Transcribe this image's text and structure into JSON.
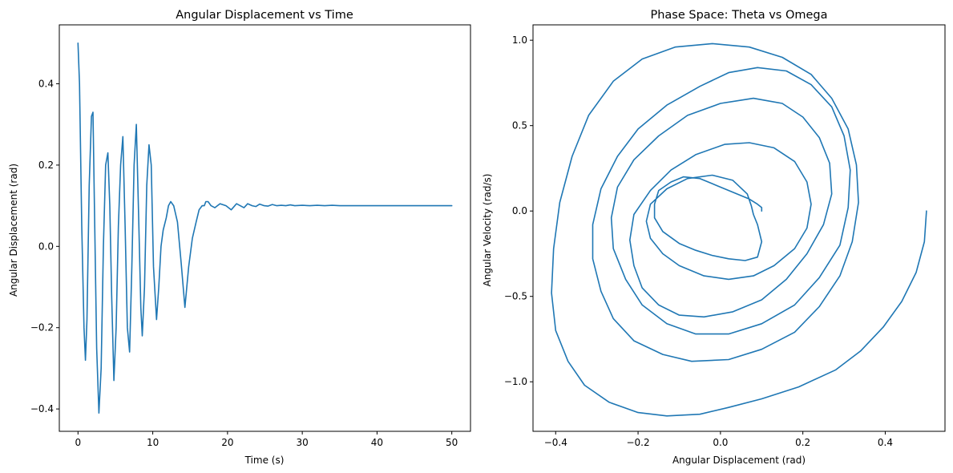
{
  "chart_data": [
    {
      "type": "line",
      "title": "Angular Displacement vs Time",
      "xlabel": "Time (s)",
      "ylabel": "Angular Displacement (rad)",
      "xlim": [
        -2.5,
        52.5
      ],
      "ylim": [
        -0.455,
        0.545
      ],
      "xticks": [
        0,
        10,
        20,
        30,
        40,
        50
      ],
      "yticks": [
        -0.4,
        -0.2,
        0.0,
        0.2,
        0.4
      ],
      "xticklabels": [
        "0",
        "10",
        "20",
        "30",
        "40",
        "50"
      ],
      "yticklabels": [
        "−0.4",
        "−0.2",
        "0.0",
        "0.2",
        "0.4"
      ],
      "grid": false,
      "series": [
        {
          "color": "#1f77b4",
          "x": [
            0,
            0.2,
            0.5,
            0.8,
            1.0,
            1.2,
            1.5,
            1.8,
            2.0,
            2.2,
            2.5,
            2.8,
            3.1,
            3.4,
            3.7,
            4.0,
            4.25,
            4.5,
            4.8,
            5.1,
            5.4,
            5.7,
            6.0,
            6.3,
            6.6,
            6.9,
            7.2,
            7.5,
            7.8,
            8.1,
            8.4,
            8.6,
            8.9,
            9.2,
            9.5,
            9.8,
            10.1,
            10.5,
            10.8,
            11.1,
            11.4,
            11.8,
            12.1,
            12.4,
            12.8,
            13.3,
            13.8,
            14.3,
            14.8,
            15.3,
            15.8,
            16.2,
            16.6,
            16.9,
            17.1,
            17.4,
            17.8,
            18.3,
            19.0,
            19.8,
            20.5,
            21.2,
            21.7,
            22.2,
            22.7,
            23.3,
            23.8,
            24.3,
            24.9,
            25.4,
            26.0,
            26.6,
            27.2,
            27.8,
            28.4,
            29.0,
            30.0,
            31.0,
            32.0,
            33.0,
            34.0,
            35.0,
            37.0,
            40.0,
            45.0,
            50.0
          ],
          "y": [
            0.5,
            0.4,
            0.05,
            -0.2,
            -0.28,
            -0.18,
            0.15,
            0.32,
            0.33,
            0.1,
            -0.25,
            -0.41,
            -0.3,
            0.0,
            0.2,
            0.23,
            0.1,
            -0.12,
            -0.33,
            -0.2,
            0.05,
            0.2,
            0.27,
            0.05,
            -0.2,
            -0.26,
            -0.05,
            0.2,
            0.3,
            0.08,
            -0.15,
            -0.22,
            -0.1,
            0.15,
            0.25,
            0.2,
            -0.05,
            -0.18,
            -0.1,
            0.0,
            0.04,
            0.07,
            0.1,
            0.11,
            0.1,
            0.06,
            -0.04,
            -0.15,
            -0.05,
            0.02,
            0.06,
            0.09,
            0.1,
            0.1,
            0.11,
            0.11,
            0.1,
            0.095,
            0.105,
            0.1,
            0.09,
            0.105,
            0.1,
            0.095,
            0.105,
            0.1,
            0.098,
            0.104,
            0.1,
            0.099,
            0.103,
            0.1,
            0.101,
            0.1,
            0.102,
            0.1,
            0.101,
            0.1,
            0.101,
            0.1,
            0.101,
            0.1,
            0.1,
            0.1,
            0.1,
            0.1
          ]
        }
      ]
    },
    {
      "type": "line",
      "title": "Phase Space: Theta vs Omega",
      "xlabel": "Angular Displacement (rad)",
      "ylabel": "Angular Velocity (rad/s)",
      "xlim": [
        -0.455,
        0.545
      ],
      "ylim": [
        -1.29,
        1.09
      ],
      "xticks": [
        -0.4,
        -0.2,
        0.0,
        0.2,
        0.4
      ],
      "yticks": [
        -1.0,
        -0.5,
        0.0,
        0.5,
        1.0
      ],
      "xticklabels": [
        "−0.4",
        "−0.2",
        "0.0",
        "0.2",
        "0.4"
      ],
      "yticklabels": [
        "−1.0",
        "−0.5",
        "0.0",
        "0.5",
        "1.0"
      ],
      "grid": false,
      "series": [
        {
          "color": "#1f77b4",
          "x": [
            0.5,
            0.495,
            0.475,
            0.44,
            0.395,
            0.34,
            0.28,
            0.19,
            0.1,
            0.02,
            -0.05,
            -0.13,
            -0.2,
            -0.27,
            -0.33,
            -0.37,
            -0.4,
            -0.41,
            -0.405,
            -0.39,
            -0.36,
            -0.32,
            -0.26,
            -0.19,
            -0.11,
            -0.02,
            0.07,
            0.15,
            0.22,
            0.27,
            0.31,
            0.33,
            0.335,
            0.32,
            0.29,
            0.24,
            0.18,
            0.1,
            0.02,
            -0.07,
            -0.14,
            -0.21,
            -0.26,
            -0.29,
            -0.31,
            -0.31,
            -0.29,
            -0.25,
            -0.2,
            -0.13,
            -0.05,
            0.02,
            0.09,
            0.16,
            0.22,
            0.27,
            0.3,
            0.315,
            0.31,
            0.29,
            0.24,
            0.18,
            0.1,
            0.02,
            -0.06,
            -0.13,
            -0.19,
            -0.23,
            -0.26,
            -0.265,
            -0.25,
            -0.21,
            -0.15,
            -0.08,
            0.0,
            0.08,
            0.15,
            0.2,
            0.24,
            0.265,
            0.27,
            0.25,
            0.21,
            0.16,
            0.1,
            0.03,
            -0.04,
            -0.1,
            -0.15,
            -0.19,
            -0.21,
            -0.22,
            -0.21,
            -0.17,
            -0.12,
            -0.06,
            0.01,
            0.07,
            0.13,
            0.18,
            0.21,
            0.22,
            0.21,
            0.18,
            0.13,
            0.08,
            0.02,
            -0.04,
            -0.1,
            -0.14,
            -0.17,
            -0.18,
            -0.17,
            -0.13,
            -0.08,
            -0.02,
            0.03,
            0.065,
            0.075,
            0.08,
            0.09,
            0.1,
            0.09,
            0.06,
            0.02,
            -0.02,
            -0.06,
            -0.1,
            -0.14,
            -0.16,
            -0.16,
            -0.15,
            -0.12,
            -0.09,
            -0.05,
            -0.01,
            0.03,
            0.07,
            0.09,
            0.1,
            0.1,
            0.1
          ],
          "y": [
            0.0,
            -0.18,
            -0.36,
            -0.53,
            -0.68,
            -0.82,
            -0.93,
            -1.03,
            -1.1,
            -1.15,
            -1.19,
            -1.2,
            -1.18,
            -1.12,
            -1.02,
            -0.88,
            -0.7,
            -0.48,
            -0.22,
            0.05,
            0.32,
            0.56,
            0.76,
            0.89,
            0.96,
            0.98,
            0.96,
            0.9,
            0.8,
            0.66,
            0.48,
            0.27,
            0.05,
            -0.18,
            -0.38,
            -0.56,
            -0.71,
            -0.81,
            -0.87,
            -0.88,
            -0.84,
            -0.76,
            -0.63,
            -0.47,
            -0.28,
            -0.08,
            0.13,
            0.32,
            0.48,
            0.62,
            0.73,
            0.81,
            0.84,
            0.82,
            0.74,
            0.61,
            0.44,
            0.24,
            0.02,
            -0.2,
            -0.39,
            -0.55,
            -0.66,
            -0.72,
            -0.72,
            -0.66,
            -0.55,
            -0.4,
            -0.22,
            -0.04,
            0.14,
            0.3,
            0.44,
            0.56,
            0.63,
            0.66,
            0.63,
            0.55,
            0.43,
            0.28,
            0.1,
            -0.08,
            -0.25,
            -0.4,
            -0.52,
            -0.59,
            -0.62,
            -0.61,
            -0.55,
            -0.45,
            -0.32,
            -0.17,
            -0.02,
            0.12,
            0.24,
            0.33,
            0.39,
            0.4,
            0.37,
            0.29,
            0.17,
            0.04,
            -0.1,
            -0.22,
            -0.32,
            -0.38,
            -0.4,
            -0.38,
            -0.32,
            -0.25,
            -0.16,
            -0.06,
            0.04,
            0.13,
            0.19,
            0.21,
            0.18,
            0.1,
            0.03,
            -0.02,
            -0.08,
            -0.18,
            -0.27,
            -0.29,
            -0.28,
            -0.26,
            -0.23,
            -0.19,
            -0.12,
            -0.04,
            0.04,
            0.12,
            0.17,
            0.2,
            0.19,
            0.15,
            0.11,
            0.07,
            0.04,
            0.02,
            0.01,
            0.0
          ]
        }
      ]
    }
  ]
}
